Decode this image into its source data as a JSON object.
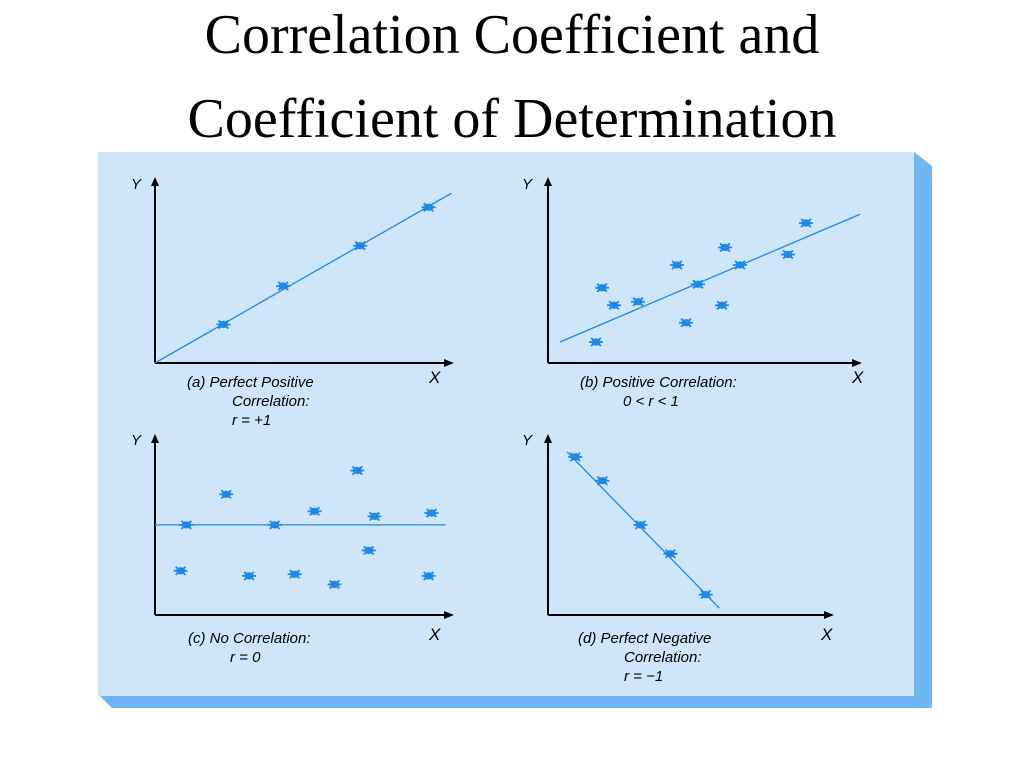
{
  "page": {
    "title_line1": "Correlation Coefficient and",
    "title_line2": "Coefficient of Determination"
  },
  "colors": {
    "panel_bg": "#cfe6fa",
    "panel_shade": "#6fb6f2",
    "axis": "#000000",
    "data": "#1e88e5",
    "text": "#000000"
  },
  "chart_data": [
    {
      "type": "scatter",
      "panel": "a",
      "xlabel": "X",
      "ylabel": "Y",
      "caption": [
        "(a)   Perfect Positive",
        "Correlation:",
        "r = +1"
      ],
      "xlim": [
        0,
        10
      ],
      "ylim": [
        0,
        10
      ],
      "points": [
        [
          2.4,
          2.2
        ],
        [
          4.5,
          4.4
        ],
        [
          7.2,
          6.7
        ],
        [
          9.6,
          8.9
        ]
      ],
      "fit_line": [
        [
          0,
          0
        ],
        [
          10.4,
          9.7
        ]
      ]
    },
    {
      "type": "scatter",
      "panel": "b",
      "xlabel": "X",
      "ylabel": "Y",
      "caption": [
        "(b)   Positive Correlation:",
        "0 < r < 1"
      ],
      "xlim": [
        0,
        10
      ],
      "ylim": [
        0,
        10
      ],
      "points": [
        [
          1.8,
          4.3
        ],
        [
          2.2,
          3.3
        ],
        [
          3.0,
          3.5
        ],
        [
          1.6,
          1.2
        ],
        [
          4.3,
          5.6
        ],
        [
          4.6,
          2.3
        ],
        [
          5.0,
          4.5
        ],
        [
          5.9,
          6.6
        ],
        [
          6.4,
          5.6
        ],
        [
          5.8,
          3.3
        ],
        [
          8.0,
          6.2
        ],
        [
          8.6,
          8.0
        ]
      ],
      "fit_line": [
        [
          0.4,
          1.2
        ],
        [
          10.4,
          8.5
        ]
      ]
    },
    {
      "type": "scatter",
      "panel": "c",
      "xlabel": "X",
      "ylabel": "Y",
      "caption": [
        "(c)   No Correlation:",
        "r = 0"
      ],
      "xlim": [
        0,
        10
      ],
      "ylim": [
        0,
        10
      ],
      "points": [
        [
          1.1,
          5.3
        ],
        [
          0.9,
          2.6
        ],
        [
          2.5,
          7.1
        ],
        [
          3.3,
          2.3
        ],
        [
          4.2,
          5.3
        ],
        [
          4.9,
          2.4
        ],
        [
          5.6,
          6.1
        ],
        [
          6.3,
          1.8
        ],
        [
          7.1,
          8.5
        ],
        [
          7.5,
          3.8
        ],
        [
          7.7,
          5.8
        ],
        [
          9.6,
          2.3
        ],
        [
          9.7,
          6.0
        ]
      ],
      "fit_line": [
        [
          0,
          5.3
        ],
        [
          10.2,
          5.3
        ]
      ]
    },
    {
      "type": "scatter",
      "panel": "d",
      "xlabel": "X",
      "ylabel": "Y",
      "caption": [
        "(d)   Perfect Negative",
        "Correlation:",
        "r = −1"
      ],
      "xlim": [
        0,
        10
      ],
      "ylim": [
        0,
        10
      ],
      "points": [
        [
          1.0,
          9.3
        ],
        [
          2.0,
          7.9
        ],
        [
          3.4,
          5.3
        ],
        [
          4.5,
          3.6
        ],
        [
          5.8,
          1.2
        ]
      ],
      "fit_line": [
        [
          0.7,
          9.6
        ],
        [
          6.3,
          0.4
        ]
      ]
    }
  ]
}
